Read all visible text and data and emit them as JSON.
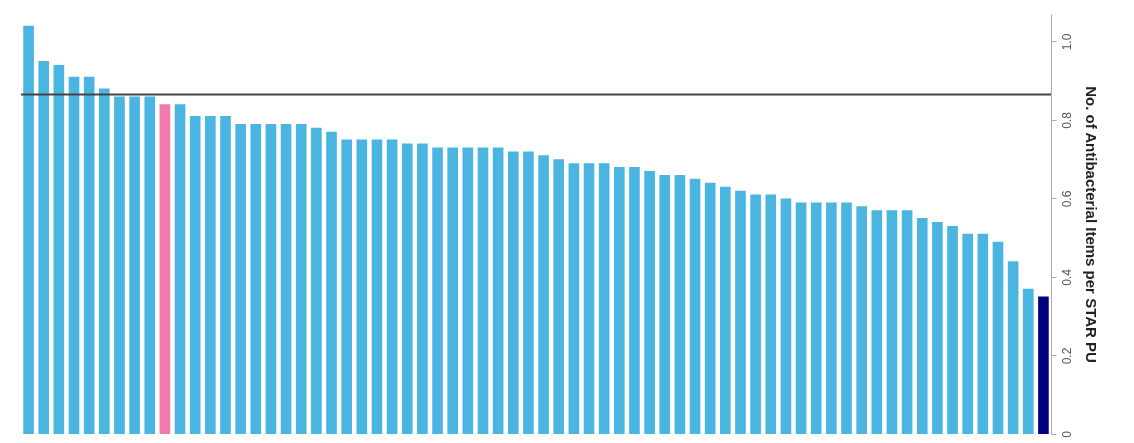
{
  "chart_data": {
    "type": "bar",
    "ylabel": "No. of Antibacterial Items per STAR PU",
    "categories": [
      null,
      null,
      null,
      null,
      null,
      null,
      null,
      null,
      null,
      null,
      null,
      null,
      null,
      null,
      null,
      null,
      null,
      null,
      null,
      null,
      null,
      null,
      null,
      null,
      null,
      null,
      null,
      null,
      null,
      null,
      null,
      null,
      null,
      null,
      null,
      null,
      null,
      null,
      null,
      null,
      null,
      null,
      null,
      null,
      null,
      null,
      null,
      null,
      null,
      null,
      null,
      null,
      null,
      null,
      null,
      null,
      null,
      null,
      null,
      null,
      null,
      null,
      null,
      null,
      null,
      null,
      null,
      null
    ],
    "values": [
      1.04,
      0.95,
      0.94,
      0.91,
      0.91,
      0.88,
      0.86,
      0.86,
      0.86,
      0.84,
      0.84,
      0.81,
      0.81,
      0.81,
      0.79,
      0.79,
      0.79,
      0.79,
      0.79,
      0.78,
      0.77,
      0.75,
      0.75,
      0.75,
      0.75,
      0.74,
      0.74,
      0.73,
      0.73,
      0.73,
      0.73,
      0.73,
      0.72,
      0.72,
      0.71,
      0.7,
      0.69,
      0.69,
      0.69,
      0.68,
      0.68,
      0.67,
      0.66,
      0.66,
      0.65,
      0.64,
      0.63,
      0.62,
      0.61,
      0.61,
      0.6,
      0.59,
      0.59,
      0.59,
      0.59,
      0.58,
      0.57,
      0.57,
      0.57,
      0.55,
      0.54,
      0.53,
      0.51,
      0.51,
      0.49,
      0.44,
      0.37,
      0.35
    ],
    "colors": [
      "#4bb5e2",
      "#4bb5e2",
      "#4bb5e2",
      "#4bb5e2",
      "#4bb5e2",
      "#4bb5e2",
      "#4bb5e2",
      "#4bb5e2",
      "#4bb5e2",
      "#f07aaa",
      "#4bb5e2",
      "#4bb5e2",
      "#4bb5e2",
      "#4bb5e2",
      "#4bb5e2",
      "#4bb5e2",
      "#4bb5e2",
      "#4bb5e2",
      "#4bb5e2",
      "#4bb5e2",
      "#4bb5e2",
      "#4bb5e2",
      "#4bb5e2",
      "#4bb5e2",
      "#4bb5e2",
      "#4bb5e2",
      "#4bb5e2",
      "#4bb5e2",
      "#4bb5e2",
      "#4bb5e2",
      "#4bb5e2",
      "#4bb5e2",
      "#4bb5e2",
      "#4bb5e2",
      "#4bb5e2",
      "#4bb5e2",
      "#4bb5e2",
      "#4bb5e2",
      "#4bb5e2",
      "#4bb5e2",
      "#4bb5e2",
      "#4bb5e2",
      "#4bb5e2",
      "#4bb5e2",
      "#4bb5e2",
      "#4bb5e2",
      "#4bb5e2",
      "#4bb5e2",
      "#4bb5e2",
      "#4bb5e2",
      "#4bb5e2",
      "#4bb5e2",
      "#4bb5e2",
      "#4bb5e2",
      "#4bb5e2",
      "#4bb5e2",
      "#4bb5e2",
      "#4bb5e2",
      "#4bb5e2",
      "#4bb5e2",
      "#4bb5e2",
      "#4bb5e2",
      "#4bb5e2",
      "#4bb5e2",
      "#4bb5e2",
      "#4bb5e2",
      "#4bb5e2",
      "#000080"
    ],
    "ylim": [
      0,
      1.07
    ],
    "yticks": [
      0,
      0.2,
      0.4,
      0.6,
      0.8,
      {
        "value": 1,
        "label": "1.0"
      }
    ],
    "ref_lines": [
      {
        "axis": "y",
        "value": 0.865,
        "color": "#444444"
      }
    ],
    "tick_labels": "y",
    "grid": false,
    "legend": false
  }
}
